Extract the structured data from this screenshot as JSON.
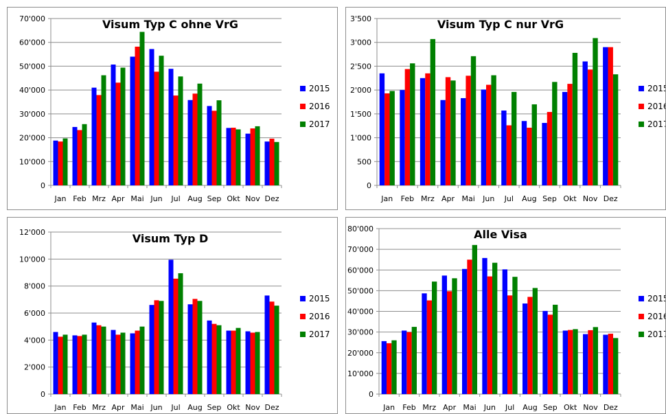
{
  "chart_data": [
    {
      "type": "bar",
      "title": "Visum Typ C ohne VrG",
      "categories": [
        "Jan",
        "Feb",
        "Mrz",
        "Apr",
        "Mai",
        "Jun",
        "Jul",
        "Aug",
        "Sep",
        "Okt",
        "Nov",
        "Dez"
      ],
      "ylim": [
        0,
        70000
      ],
      "yticks": [
        0,
        10000,
        20000,
        30000,
        40000,
        50000,
        60000,
        70000
      ],
      "ytick_labels": [
        "0",
        "10'000",
        "20'000",
        "30'000",
        "40'000",
        "50'000",
        "60'000",
        "70'000"
      ],
      "grid": true,
      "legend_position": "right",
      "series": [
        {
          "name": "2015",
          "color": "#0000ff",
          "values": [
            18800,
            24500,
            41000,
            50700,
            54000,
            57200,
            48900,
            35800,
            33300,
            24100,
            21700,
            18400
          ]
        },
        {
          "name": "2016",
          "color": "#ff0000",
          "values": [
            18400,
            23200,
            37900,
            43100,
            58200,
            47700,
            37700,
            38500,
            31300,
            24200,
            23900,
            19600
          ]
        },
        {
          "name": "2017",
          "color": "#008000",
          "values": [
            19700,
            25700,
            46200,
            49400,
            64400,
            54400,
            45700,
            42700,
            35700,
            23500,
            24800,
            18200
          ]
        }
      ]
    },
    {
      "type": "bar",
      "title": "Visum Typ C nur VrG",
      "categories": [
        "Jan",
        "Feb",
        "Mrz",
        "Apr",
        "Mai",
        "Jun",
        "Jul",
        "Aug",
        "Sep",
        "Okt",
        "Nov",
        "Dez"
      ],
      "ylim": [
        0,
        3500
      ],
      "yticks": [
        0,
        500,
        1000,
        1500,
        2000,
        2500,
        3000,
        3500
      ],
      "ytick_labels": [
        "0",
        "500",
        "1'000",
        "1'500",
        "2'000",
        "2'500",
        "3'000",
        "3'500"
      ],
      "grid": true,
      "legend_position": "right",
      "series": [
        {
          "name": "2015",
          "color": "#0000ff",
          "values": [
            2350,
            2000,
            2250,
            1790,
            1830,
            2010,
            1570,
            1350,
            1310,
            1960,
            2600,
            2900
          ]
        },
        {
          "name": "2016",
          "color": "#ff0000",
          "values": [
            1930,
            2440,
            2350,
            2270,
            2300,
            2110,
            1260,
            1210,
            1540,
            2130,
            2430,
            2900
          ]
        },
        {
          "name": "2017",
          "color": "#008000",
          "values": [
            1980,
            2560,
            3070,
            2200,
            2710,
            2310,
            1960,
            1700,
            2170,
            2780,
            3090,
            2330
          ]
        }
      ]
    },
    {
      "type": "bar",
      "title": "Visum Typ D",
      "categories": [
        "Jan",
        "Feb",
        "Mrz",
        "Apr",
        "Mai",
        "Jun",
        "Jul",
        "Aug",
        "Sep",
        "Okt",
        "Nov",
        "Dez"
      ],
      "ylim": [
        0,
        12000
      ],
      "yticks": [
        0,
        2000,
        4000,
        6000,
        8000,
        10000,
        12000
      ],
      "ytick_labels": [
        "0",
        "2'000",
        "4'000",
        "6'000",
        "8'000",
        "10'000",
        "12'000"
      ],
      "grid": true,
      "legend_position": "right",
      "series": [
        {
          "name": "2015",
          "color": "#0000ff",
          "values": [
            4600,
            4350,
            5300,
            4750,
            4500,
            6600,
            9950,
            6650,
            5450,
            4700,
            4650,
            7300
          ]
        },
        {
          "name": "2016",
          "color": "#ff0000",
          "values": [
            4250,
            4300,
            5100,
            4400,
            4700,
            6950,
            8550,
            7050,
            5200,
            4700,
            4550,
            6850
          ]
        },
        {
          "name": "2017",
          "color": "#008000",
          "values": [
            4400,
            4400,
            5000,
            4550,
            5000,
            6900,
            8950,
            6900,
            5100,
            4900,
            4600,
            6550
          ]
        }
      ]
    },
    {
      "type": "bar",
      "title": "Alle Visa",
      "categories": [
        "Jan",
        "Feb",
        "Mrz",
        "Apr",
        "Mai",
        "Jun",
        "Jul",
        "Aug",
        "Sep",
        "Okt",
        "Nov",
        "Dez"
      ],
      "ylim": [
        0,
        80000
      ],
      "yticks": [
        0,
        10000,
        20000,
        30000,
        40000,
        50000,
        60000,
        70000,
        80000
      ],
      "ytick_labels": [
        "0",
        "10'000",
        "20'000",
        "30'000",
        "40'000",
        "50'000",
        "60'000",
        "70'000",
        "80'000"
      ],
      "grid": true,
      "legend_position": "right",
      "series": [
        {
          "name": "2015",
          "color": "#0000ff",
          "values": [
            25600,
            30700,
            48700,
            57300,
            60500,
            65800,
            60300,
            43800,
            40200,
            30700,
            29000,
            28700
          ]
        },
        {
          "name": "2016",
          "color": "#ff0000",
          "values": [
            24600,
            29900,
            45300,
            49700,
            65000,
            56900,
            47700,
            47000,
            38400,
            31000,
            30900,
            29200
          ]
        },
        {
          "name": "2017",
          "color": "#008000",
          "values": [
            26000,
            32500,
            54400,
            56000,
            72100,
            63500,
            56700,
            51300,
            43200,
            31400,
            32400,
            27100
          ]
        }
      ]
    }
  ]
}
